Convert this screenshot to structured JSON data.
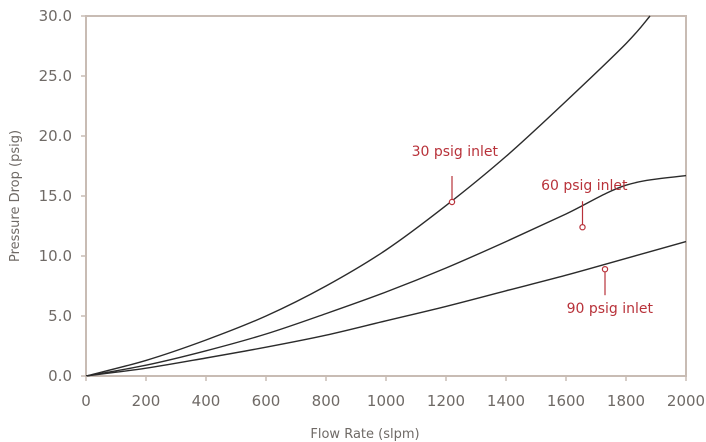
{
  "chart_data": {
    "type": "line",
    "xlabel": "Flow Rate (slpm)",
    "ylabel": "Pressure Drop (psig)",
    "xlim": [
      0,
      2000
    ],
    "ylim": [
      0,
      30
    ],
    "xticks": [
      0,
      200,
      400,
      600,
      800,
      1000,
      1200,
      1400,
      1600,
      1800,
      2000
    ],
    "xtick_labels": [
      "0",
      "200",
      "400",
      "600",
      "800",
      "1000",
      "1200",
      "1400",
      "1600",
      "1800",
      "2000"
    ],
    "yticks": [
      0,
      5,
      10,
      15,
      20,
      25,
      30
    ],
    "ytick_labels": [
      "0.0",
      "5.0",
      "10.0",
      "15.0",
      "20.0",
      "25.0",
      "30.0"
    ],
    "grid": false,
    "legend": "none",
    "colors": {
      "line": "#2b2b2b",
      "axis": "#c8bcb4",
      "tick_text": "#6f6a66",
      "annotation": "#b8323a"
    },
    "series": [
      {
        "x": [
          0,
          200,
          400,
          600,
          800,
          1000,
          1200,
          1400,
          1600,
          1800,
          1880
        ],
        "y": [
          0,
          1.3,
          3.0,
          5.0,
          7.5,
          10.5,
          14.2,
          18.3,
          22.9,
          27.7,
          30.0
        ]
      },
      {
        "x": [
          0,
          200,
          400,
          600,
          800,
          1000,
          1200,
          1400,
          1600,
          1800,
          2000
        ],
        "y": [
          0,
          0.9,
          2.1,
          3.5,
          5.2,
          7.0,
          9.0,
          11.2,
          13.5,
          15.9,
          16.7
        ]
      },
      {
        "x": [
          0,
          200,
          400,
          600,
          800,
          1000,
          1200,
          1400,
          1600,
          1800,
          2000
        ],
        "y": [
          0,
          0.65,
          1.5,
          2.4,
          3.4,
          4.6,
          5.8,
          7.1,
          8.4,
          9.8,
          11.2
        ]
      }
    ],
    "annotations": [
      {
        "text": "30 psig inlet",
        "x": 1220,
        "y": 14.5
      },
      {
        "text": "60 psig inlet",
        "x": 1655,
        "y": 12.4
      },
      {
        "text": "90 psig inlet",
        "x": 1730,
        "y": 8.9
      }
    ]
  }
}
